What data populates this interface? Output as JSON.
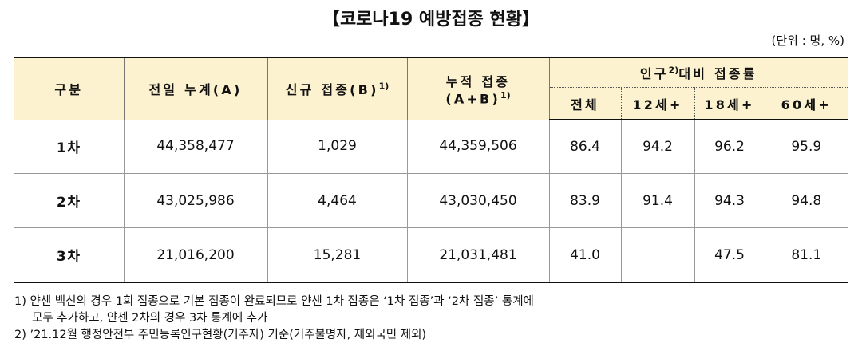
{
  "title": "【코로나19 예방접종 현황】",
  "unit": "(단위 : 명, %)",
  "table": {
    "header": {
      "columns": [
        {
          "text": "구분"
        },
        {
          "text": "전일 누계(A)"
        },
        {
          "text": "신규 접종(B)",
          "note": "1)"
        },
        {
          "line1": "누적 접종",
          "line2": "(A+B)",
          "note": "1)"
        }
      ],
      "group": {
        "before": "인구",
        "note": "2)",
        "after": "대비 접종률"
      },
      "subcolumns": [
        "전체",
        "12세+",
        "18세+",
        "60세+"
      ]
    },
    "rows": [
      [
        "1차",
        "44,358,477",
        "1,029",
        "44,359,506",
        "86.4",
        "94.2",
        "96.2",
        "95.9"
      ],
      [
        "2차",
        "43,025,986",
        "4,464",
        "43,030,450",
        "83.9",
        "91.4",
        "94.3",
        "94.8"
      ],
      [
        "3차",
        "21,016,200",
        "15,281",
        "21,031,481",
        "41.0",
        null,
        "47.5",
        "81.1"
      ]
    ]
  },
  "footnotes": [
    "1) 얀센 백신의 경우 1회 접종으로 기본 접종이 완료되므로 얀센 1차 접종은 ‘1차 접종’과 ‘2차 접종’ 통계에",
    "모두 추가하고, 얀센 2차의 경우 3차 통계에 추가",
    "2) ’21.12월 행정안전부 주민등록인구현황(거주자) 기준(거주불명자, 재외국민 제외)"
  ]
}
